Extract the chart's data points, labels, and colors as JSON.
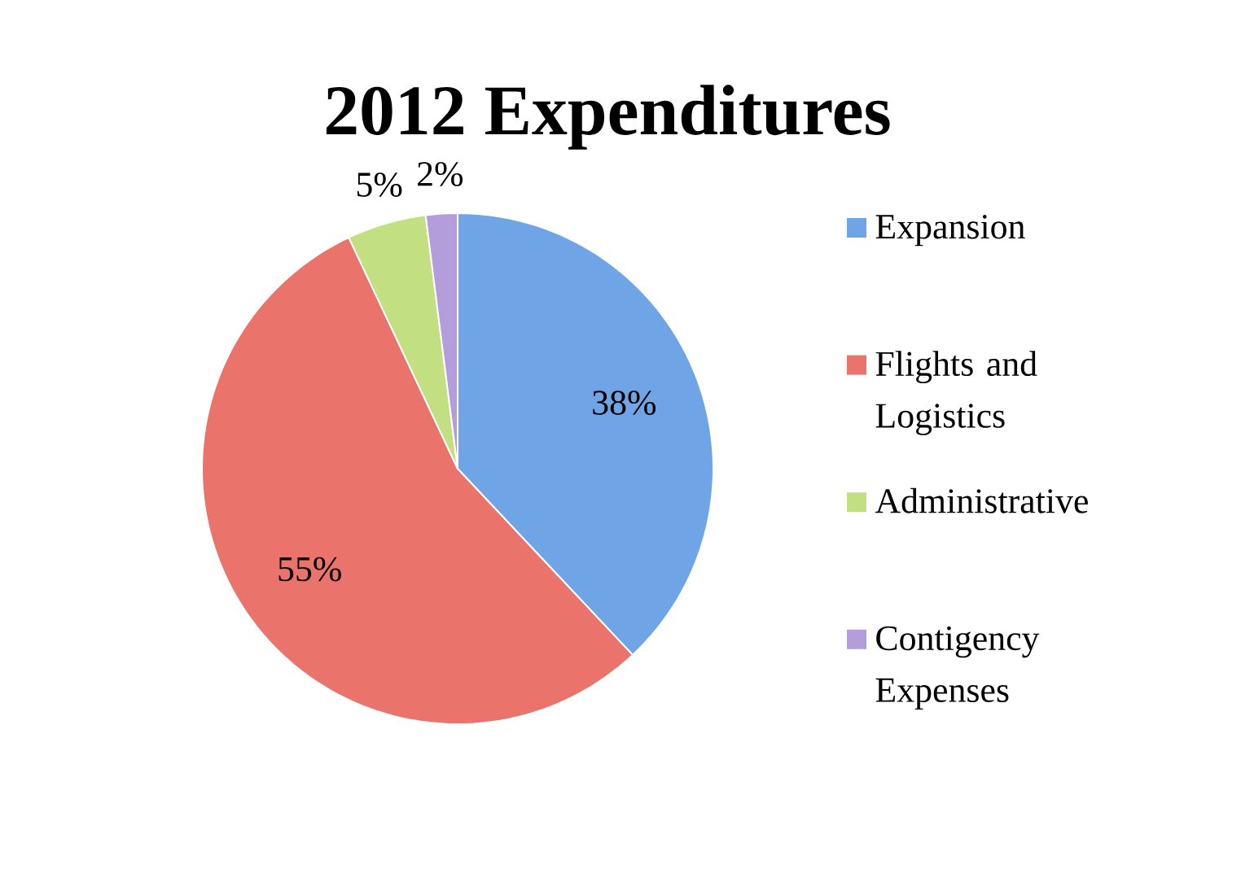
{
  "chart_data": {
    "type": "pie",
    "title": "2012 Expenditures",
    "categories": [
      "Expansion",
      "Flights and Logistics",
      "Administrative",
      "Contigency Expenses"
    ],
    "values": [
      38,
      55,
      5,
      2
    ],
    "colors": [
      "#6fa5e6",
      "#ea746c",
      "#c2df82",
      "#b39ddb"
    ],
    "value_labels": [
      "38%",
      "55%",
      "5%",
      "2%"
    ],
    "legend": "right"
  }
}
